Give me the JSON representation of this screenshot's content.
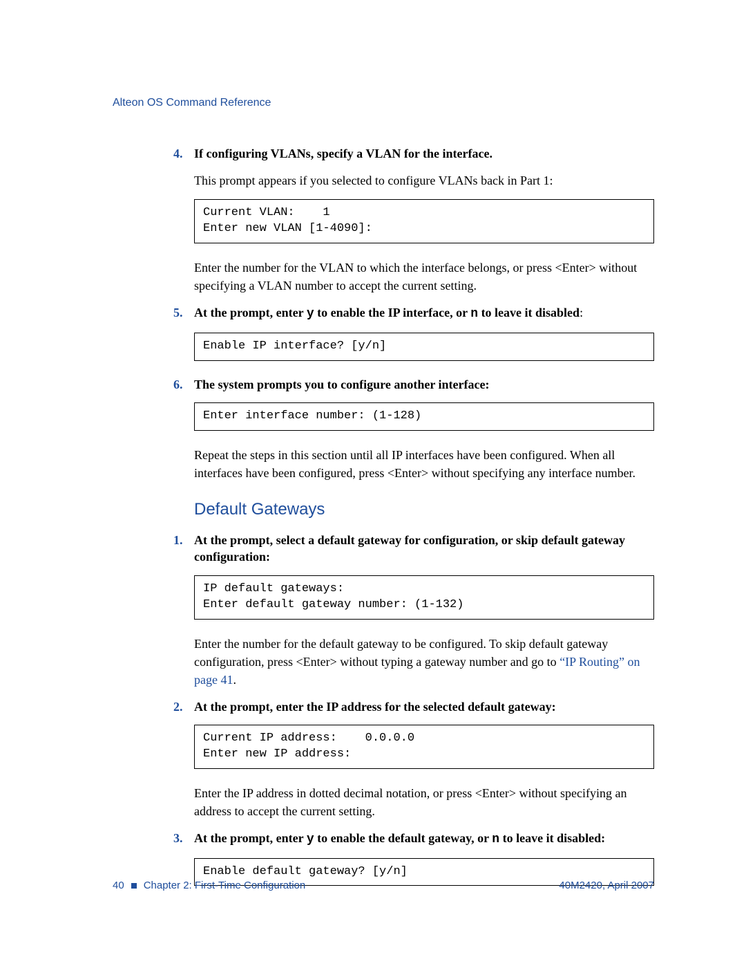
{
  "header": {
    "title": "Alteon OS Command Reference"
  },
  "colors": {
    "accent": "#1f4e9c",
    "text": "#000000",
    "bg": "#ffffff",
    "border": "#000000"
  },
  "steps_a": [
    {
      "num": "4.",
      "title_parts": [
        "If configuring VLANs, specify a VLAN for the interface."
      ],
      "body1": "This prompt appears if you selected to configure VLANs back in Part 1:",
      "code": "Current VLAN:    1\nEnter new VLAN [1-4090]:",
      "body2": "Enter the number for the VLAN to which the interface belongs, or press <Enter> without specifying a VLAN number to accept the current setting."
    },
    {
      "num": "5.",
      "title_pre": "At the prompt, enter ",
      "title_mono1": "y",
      "title_mid": " to enable the IP interface, or ",
      "title_mono2": "n",
      "title_post": " to leave it disabled",
      "title_trail": ":",
      "code": "Enable IP interface? [y/n]"
    },
    {
      "num": "6.",
      "title_parts": [
        "The system prompts you to configure another interface:"
      ],
      "code": "Enter interface number: (1-128)",
      "body2": "Repeat the steps in this section until all IP interfaces have been configured. When all interfaces have been configured, press <Enter> without specifying any interface number."
    }
  ],
  "section": {
    "heading": "Default Gateways"
  },
  "steps_b": [
    {
      "num": "1.",
      "title_parts": [
        "At the prompt, select a default gateway for configuration, or skip default gateway configuration:"
      ],
      "code": "IP default gateways:\nEnter default gateway number: (1-132)",
      "body2_pre": "Enter the number for the default gateway to be configured. To skip default gateway configuration, press <Enter> without typing a gateway number and go to ",
      "body2_link": "“IP Routing” on page 41",
      "body2_post": "."
    },
    {
      "num": "2.",
      "title_parts": [
        "At the prompt, enter the IP address for the selected default gateway:"
      ],
      "code": "Current IP address:    0.0.0.0\nEnter new IP address:",
      "body2": "Enter the IP address in dotted decimal notation, or press <Enter> without specifying an address to accept the current setting."
    },
    {
      "num": "3.",
      "title_pre": "At the prompt, enter ",
      "title_mono1": "y",
      "title_mid": " to enable the default gateway, or ",
      "title_mono2": "n",
      "title_post": " to leave it disabled:",
      "code": "Enable default gateway? [y/n]"
    }
  ],
  "footer": {
    "page": "40",
    "chapter": "Chapter 2:  First-Time Configuration",
    "docref": "40M2420, April 2007"
  }
}
